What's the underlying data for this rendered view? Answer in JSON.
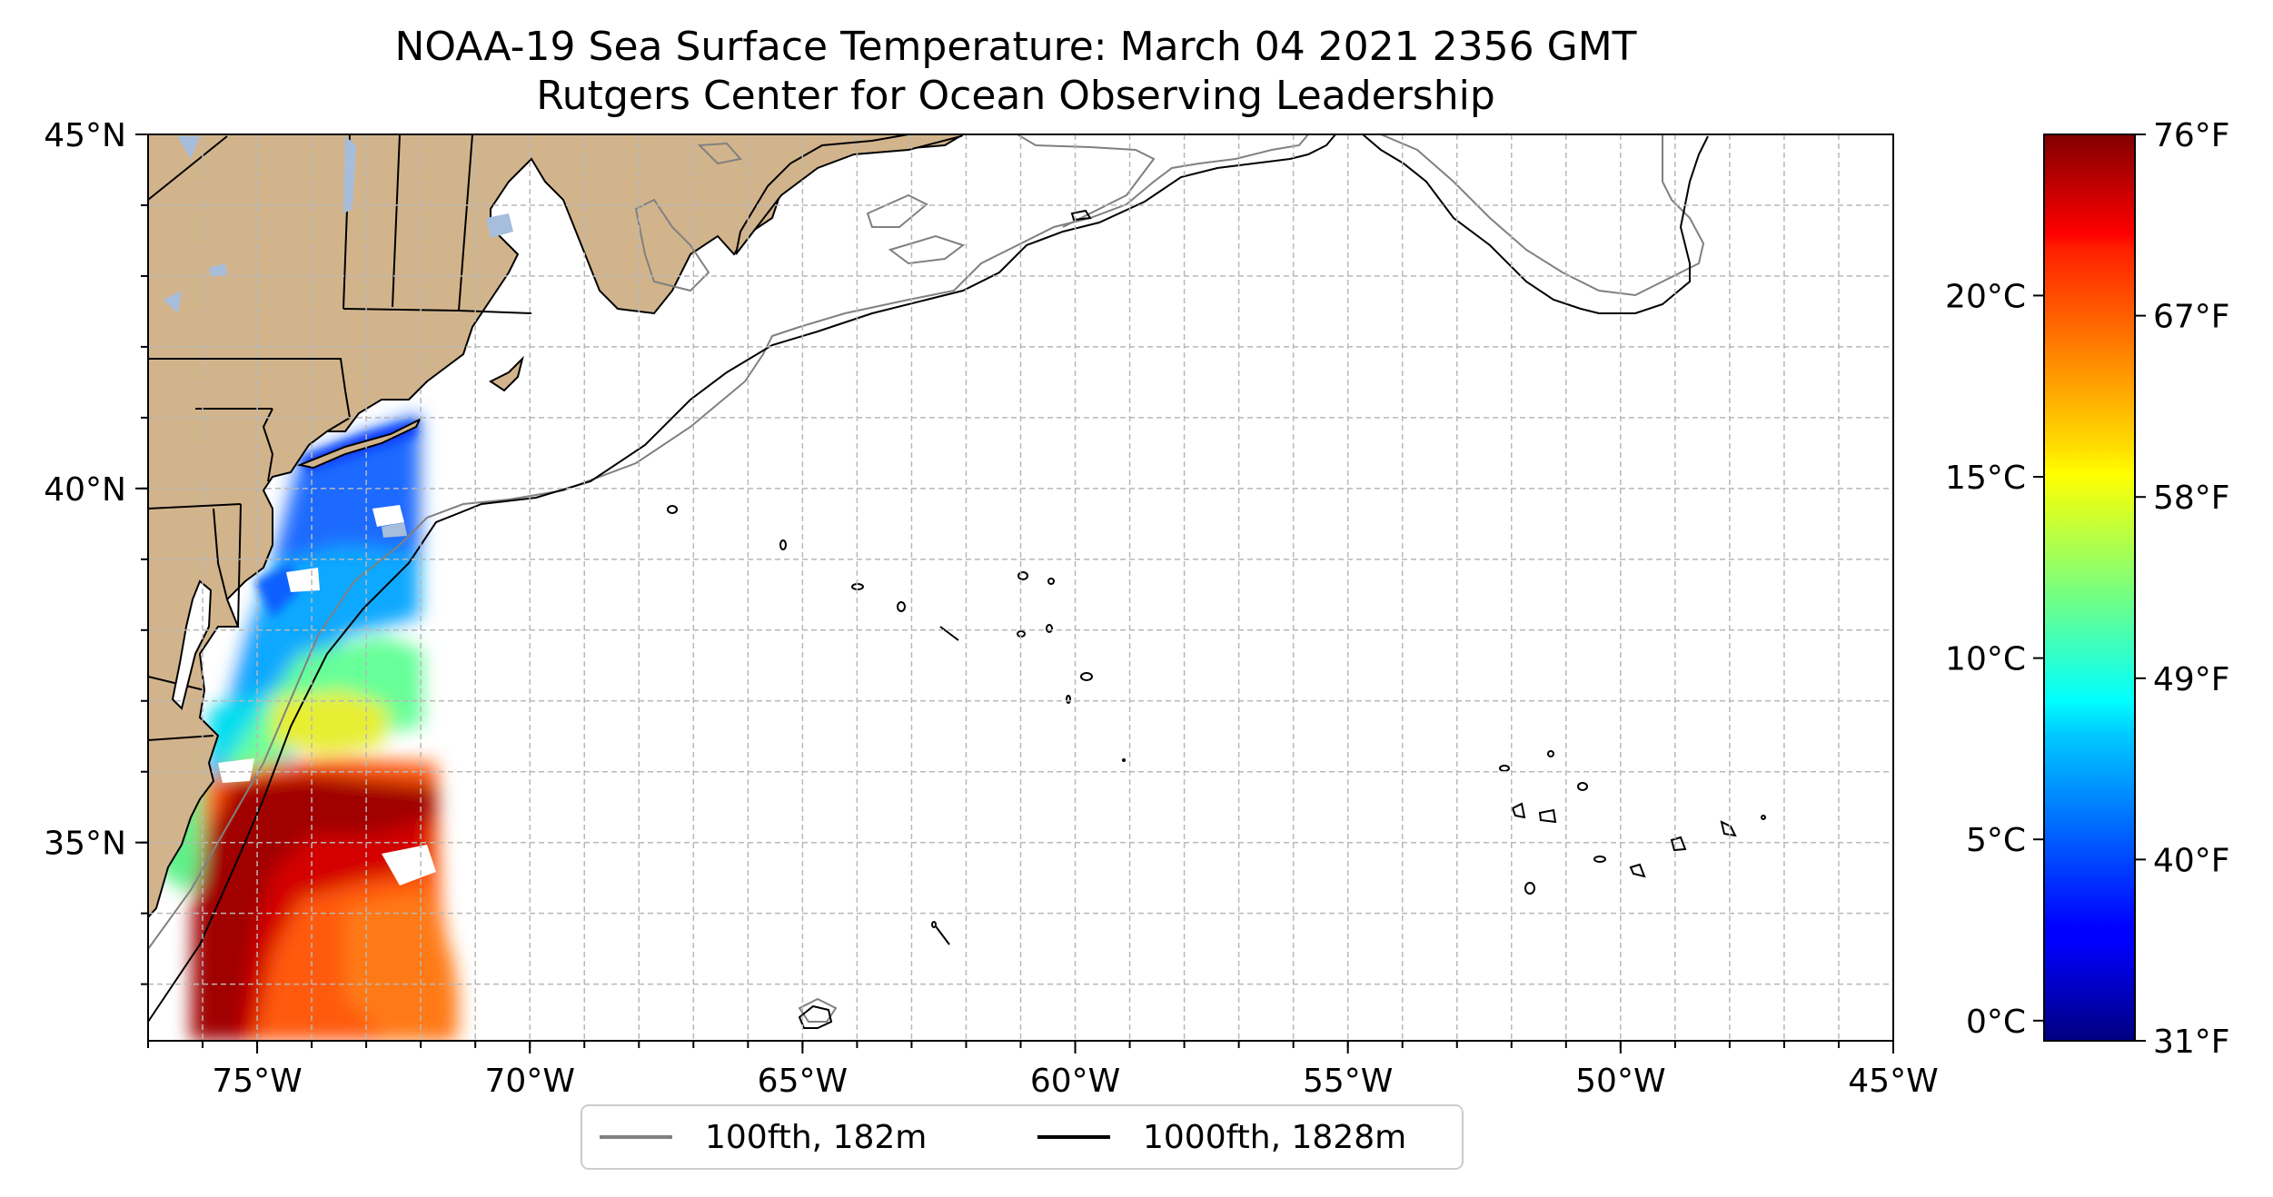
{
  "title": {
    "line1": "NOAA-19 Sea Surface Temperature: March 04 2021 2356 GMT",
    "line2": "Rutgers Center for Ocean Observing Leadership"
  },
  "map": {
    "lon_range": [
      -77,
      -45
    ],
    "lat_range": [
      32.2,
      45
    ],
    "land_color": "#d2b48c",
    "ocean_color": "#ffffff",
    "lakes_color": "#a6bddb",
    "grid": true,
    "x_ticks": [
      {
        "lon": -75,
        "label": "75°W"
      },
      {
        "lon": -70,
        "label": "70°W"
      },
      {
        "lon": -65,
        "label": "65°W"
      },
      {
        "lon": -60,
        "label": "60°W"
      },
      {
        "lon": -55,
        "label": "55°W"
      },
      {
        "lon": -50,
        "label": "50°W"
      },
      {
        "lon": -45,
        "label": "45°W"
      }
    ],
    "y_ticks": [
      {
        "lat": 45,
        "label": "45°N"
      },
      {
        "lat": 40,
        "label": "40°N"
      },
      {
        "lat": 35,
        "label": "35°N"
      }
    ]
  },
  "legend": {
    "position": "bottom-center",
    "items": [
      {
        "label": "100fth, 182m",
        "color": "#808080"
      },
      {
        "label": "1000fth, 1828m",
        "color": "#000000"
      }
    ]
  },
  "colorbar": {
    "colormap": "jet",
    "celsius_ticks": [
      {
        "value": 0,
        "label": "0°C"
      },
      {
        "value": 5,
        "label": "5°C"
      },
      {
        "value": 10,
        "label": "10°C"
      },
      {
        "value": 15,
        "label": "15°C"
      },
      {
        "value": 20,
        "label": "20°C"
      }
    ],
    "fahrenheit_ticks": [
      {
        "value": 31,
        "label": "31°F"
      },
      {
        "value": 40,
        "label": "40°F"
      },
      {
        "value": 49,
        "label": "49°F"
      },
      {
        "value": 58,
        "label": "58°F"
      },
      {
        "value": 67,
        "label": "67°F"
      },
      {
        "value": 76,
        "label": "76°F"
      }
    ],
    "range_f": [
      31,
      76
    ]
  }
}
